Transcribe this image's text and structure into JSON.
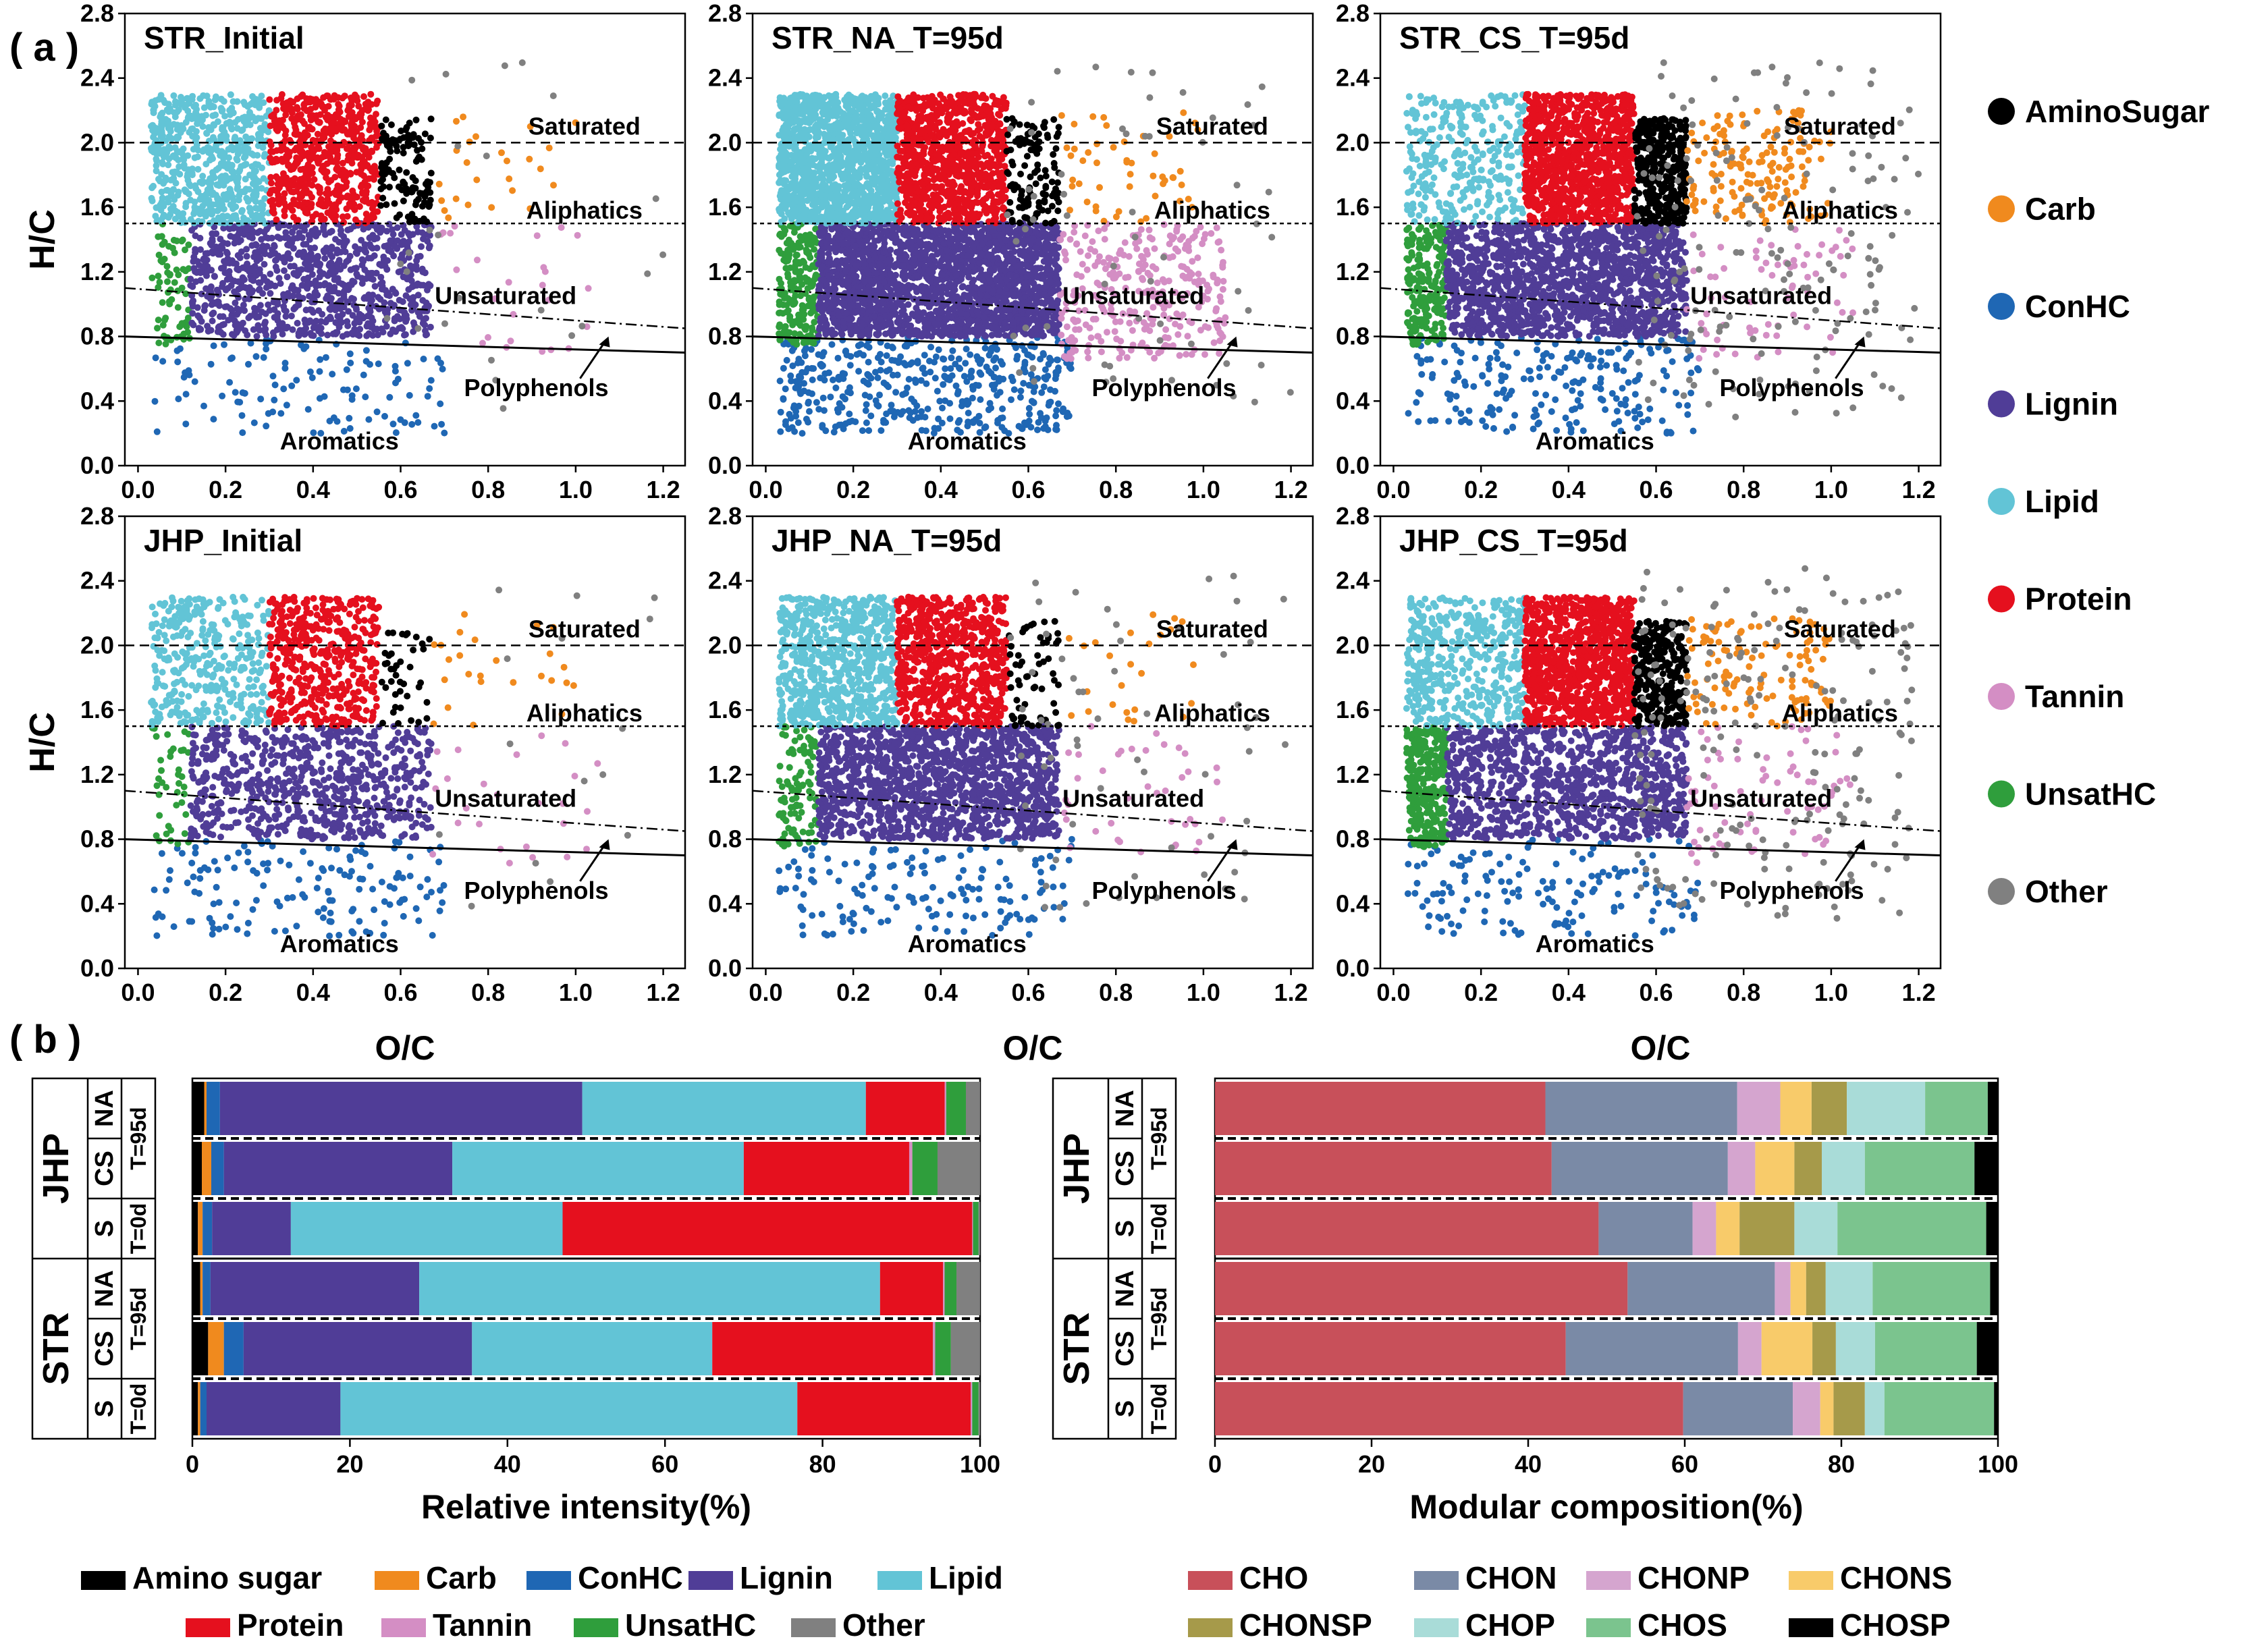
{
  "panel_labels": {
    "a": "( a )",
    "b": "( b )"
  },
  "chart_data": [
    {
      "type": "scatter",
      "id": "van_krevelen",
      "titles": [
        "STR_Initial",
        "STR_NA_T=95d",
        "STR_CS_T=95d",
        "JHP_Initial",
        "JHP_NA_T=95d",
        "JHP_CS_T=95d"
      ],
      "xlabel": "O/C",
      "ylabel": "H/C",
      "xlim": [
        -0.03,
        1.25
      ],
      "ylim": [
        0,
        2.8
      ],
      "xticks": [
        "0.0",
        "0.2",
        "0.4",
        "0.6",
        "0.8",
        "1.0",
        "1.2"
      ],
      "yticks": [
        "0.0",
        "0.4",
        "0.8",
        "1.2",
        "1.6",
        "2.0",
        "2.4",
        "2.8"
      ],
      "region_labels": {
        "saturated": "Saturated",
        "aliphatics": "Aliphatics",
        "unsaturated": "Unsaturated",
        "polyphenols": "Polyphenols",
        "aromatics": "Aromatics"
      },
      "boundaries": {
        "saturated_hc": 2.0,
        "aliphatic_hc": 1.5,
        "dashdot": [
          [
            -0.03,
            1.1
          ],
          [
            1.25,
            0.85
          ]
        ],
        "solid": [
          [
            -0.03,
            0.8
          ],
          [
            1.25,
            0.7
          ]
        ]
      },
      "legend": [
        {
          "name": "AminoSugar",
          "color": "#000000"
        },
        {
          "name": "Carb",
          "color": "#F08A1E"
        },
        {
          "name": "ConHC",
          "color": "#1F67B4"
        },
        {
          "name": "Lignin",
          "color": "#503D97"
        },
        {
          "name": "Lipid",
          "color": "#62C4D6"
        },
        {
          "name": "Protein",
          "color": "#E5101E"
        },
        {
          "name": "Tannin",
          "color": "#D48EC4"
        },
        {
          "name": "UnsatHC",
          "color": "#2F9E3C"
        },
        {
          "name": "Other",
          "color": "#808080"
        }
      ]
    },
    {
      "type": "bar",
      "id": "relative_intensity",
      "orientation": "horizontal-stacked",
      "xlabel": "Relative intensity(%)",
      "xlim": [
        0,
        100
      ],
      "xticks": [
        "0",
        "20",
        "40",
        "60",
        "80",
        "100"
      ],
      "row_groups": [
        "JHP",
        "STR"
      ],
      "row_labels": [
        "NA",
        "CS",
        "S",
        "NA",
        "CS",
        "S"
      ],
      "time_labels": [
        "T=95d",
        "T=0d",
        "T=95d",
        "T=0d"
      ],
      "classes": [
        "Amino sugar",
        "Carb",
        "ConHC",
        "Lignin",
        "Lipid",
        "Protein",
        "Tannin",
        "UnsatHC",
        "Other"
      ],
      "colors": [
        "#000000",
        "#F08A1E",
        "#1F67B4",
        "#503D97",
        "#62C4D6",
        "#E5101E",
        "#D48EC4",
        "#2F9E3C",
        "#808080"
      ],
      "series_by_row": [
        [
          1.5,
          0.3,
          1.7,
          46.0,
          36.0,
          10.0,
          0.2,
          2.5,
          1.8
        ],
        [
          1.2,
          1.2,
          1.6,
          29.0,
          37.0,
          21.0,
          0.4,
          3.2,
          5.4
        ],
        [
          0.7,
          0.6,
          1.2,
          10.0,
          34.5,
          52.0,
          0.1,
          0.7,
          0.2
        ],
        [
          1.0,
          0.3,
          1.0,
          26.5,
          58.5,
          8.0,
          0.2,
          1.5,
          3.0
        ],
        [
          2.0,
          2.0,
          2.5,
          29.0,
          30.5,
          28.0,
          0.3,
          2.0,
          3.7
        ],
        [
          0.7,
          0.3,
          0.8,
          17.0,
          58.0,
          22.0,
          0.2,
          0.8,
          0.2
        ]
      ]
    },
    {
      "type": "bar",
      "id": "modular_composition",
      "orientation": "horizontal-stacked",
      "xlabel": "Modular composition(%)",
      "xlim": [
        0,
        100
      ],
      "xticks": [
        "0",
        "20",
        "40",
        "60",
        "80",
        "100"
      ],
      "row_groups": [
        "JHP",
        "STR"
      ],
      "row_labels": [
        "NA",
        "CS",
        "S",
        "NA",
        "CS",
        "S"
      ],
      "time_labels": [
        "T=95d",
        "T=0d",
        "T=95d",
        "T=0d"
      ],
      "classes": [
        "CHO",
        "CHON",
        "CHONP",
        "CHONS",
        "CHONSP",
        "CHOP",
        "CHOS",
        "CHOSP"
      ],
      "colors": [
        "#C8505A",
        "#7A8AA6",
        "#D5A5CF",
        "#F8CB6A",
        "#A69A4A",
        "#A9DCD8",
        "#7BC48E",
        "#000000"
      ],
      "series_by_row": [
        [
          42.2,
          24.5,
          5.5,
          4.0,
          4.5,
          10.0,
          8.0,
          1.3
        ],
        [
          43.0,
          22.5,
          3.5,
          5.0,
          3.5,
          5.5,
          14.0,
          3.0
        ],
        [
          49.0,
          12.0,
          3.0,
          3.0,
          7.0,
          5.5,
          19.0,
          1.5
        ],
        [
          52.7,
          18.8,
          2.0,
          2.0,
          2.5,
          6.0,
          15.0,
          1.0
        ],
        [
          44.8,
          22.0,
          3.0,
          6.5,
          3.0,
          5.0,
          13.0,
          2.7
        ],
        [
          59.8,
          14.0,
          3.5,
          1.7,
          4.0,
          2.5,
          14.0,
          0.5
        ]
      ]
    }
  ]
}
